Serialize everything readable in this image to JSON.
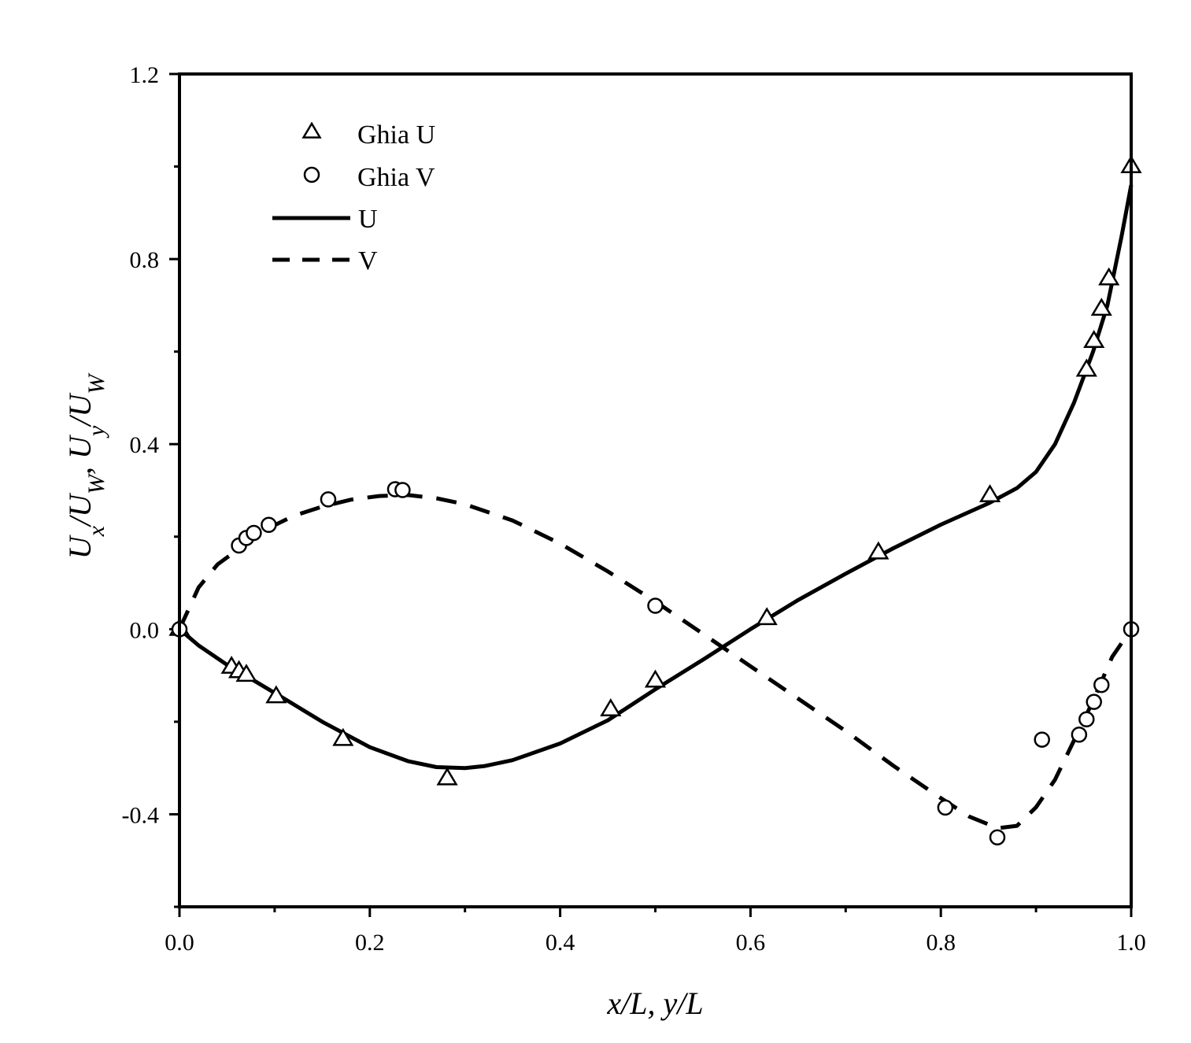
{
  "chart_data": {
    "type": "line",
    "xlabel": "x/L, y/L",
    "ylabel": "U_x/U_W, U_y/U_W",
    "xlim": [
      0.0,
      1.0
    ],
    "ylim": [
      -0.6,
      1.2
    ],
    "x_ticks": [
      0.0,
      0.2,
      0.4,
      0.6,
      0.8,
      1.0
    ],
    "x_tick_labels": [
      "0.0",
      "0.2",
      "0.4",
      "0.6",
      "0.8",
      "1.0"
    ],
    "y_ticks": [
      -0.4,
      0.0,
      0.4,
      0.8,
      1.2
    ],
    "y_tick_labels": [
      "-0.4",
      "0.0",
      "0.4",
      "0.8",
      "1.2"
    ],
    "grid": false,
    "legend_position": "top-left",
    "series": [
      {
        "name": "Ghia U",
        "style": "marker-triangle",
        "x": [
          0.0,
          0.0547,
          0.0625,
          0.0703,
          0.1016,
          0.1719,
          0.2813,
          0.4531,
          0.5,
          0.6172,
          0.7344,
          0.8516,
          0.9531,
          0.9609,
          0.9688,
          0.9766,
          1.0
        ],
        "y": [
          0.0,
          -0.0819,
          -0.0913,
          -0.0992,
          -0.1457,
          -0.2379,
          -0.3229,
          -0.1738,
          -0.1118,
          0.0232,
          0.1654,
          0.2889,
          0.5603,
          0.6223,
          0.6918,
          0.7576,
          1.0
        ]
      },
      {
        "name": "Ghia V",
        "style": "marker-circle",
        "x": [
          0.0,
          0.0625,
          0.0703,
          0.0781,
          0.0938,
          0.1563,
          0.2266,
          0.2344,
          0.5,
          0.8047,
          0.8594,
          0.9063,
          0.9453,
          0.9531,
          0.9609,
          0.9688,
          1.0
        ],
        "y": [
          0.0,
          0.1809,
          0.1972,
          0.2082,
          0.2255,
          0.2806,
          0.3025,
          0.3008,
          0.0507,
          -0.3855,
          -0.4499,
          -0.2386,
          -0.2279,
          -0.1946,
          -0.1571,
          -0.1205,
          0.0
        ]
      },
      {
        "name": "U",
        "style": "solid",
        "x": [
          0.0,
          0.02,
          0.05,
          0.08,
          0.11,
          0.15,
          0.2,
          0.24,
          0.27,
          0.3,
          0.32,
          0.35,
          0.4,
          0.45,
          0.5,
          0.55,
          0.6,
          0.65,
          0.7,
          0.75,
          0.8,
          0.85,
          0.88,
          0.9,
          0.92,
          0.94,
          0.96,
          0.975,
          0.99,
          1.0
        ],
        "y": [
          0.0,
          -0.035,
          -0.077,
          -0.113,
          -0.15,
          -0.2,
          -0.255,
          -0.285,
          -0.298,
          -0.3,
          -0.296,
          -0.283,
          -0.247,
          -0.197,
          -0.13,
          -0.066,
          0.0,
          0.063,
          0.12,
          0.175,
          0.226,
          0.272,
          0.305,
          0.34,
          0.4,
          0.49,
          0.6,
          0.7,
          0.85,
          0.96
        ]
      },
      {
        "name": "V",
        "style": "dashed",
        "x": [
          0.0,
          0.02,
          0.04,
          0.06,
          0.08,
          0.1,
          0.12,
          0.15,
          0.18,
          0.21,
          0.24,
          0.27,
          0.3,
          0.35,
          0.4,
          0.45,
          0.5,
          0.55,
          0.6,
          0.65,
          0.7,
          0.75,
          0.8,
          0.83,
          0.86,
          0.88,
          0.9,
          0.92,
          0.94,
          0.96,
          0.98,
          1.0
        ],
        "y": [
          0.0,
          0.09,
          0.14,
          0.17,
          0.2,
          0.225,
          0.245,
          0.265,
          0.28,
          0.288,
          0.29,
          0.283,
          0.27,
          0.235,
          0.185,
          0.125,
          0.06,
          -0.01,
          -0.08,
          -0.15,
          -0.22,
          -0.295,
          -0.365,
          -0.405,
          -0.43,
          -0.425,
          -0.385,
          -0.325,
          -0.24,
          -0.155,
          -0.06,
          0.0
        ]
      }
    ]
  }
}
